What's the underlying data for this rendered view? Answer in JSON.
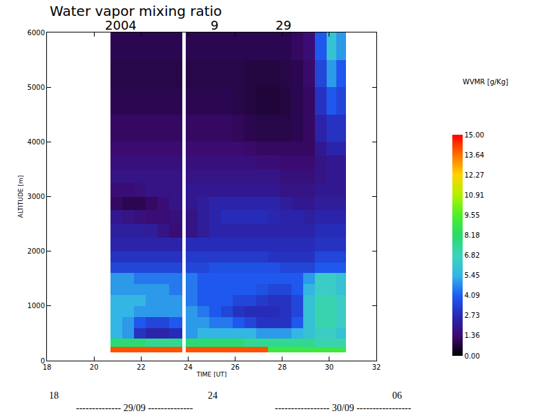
{
  "chart_data": {
    "type": "heatmap",
    "title": "Water vapor mixing ratio",
    "date_labels": [
      "2004",
      "9",
      "29"
    ],
    "x_label": "TIME [UT]",
    "y_label": "ALTITUDE [m]",
    "xlim": [
      18,
      32
    ],
    "xticks": [
      18,
      20,
      22,
      24,
      26,
      28,
      30,
      32
    ],
    "ylim": [
      0,
      6000
    ],
    "yticks": [
      0,
      1000,
      2000,
      3000,
      4000,
      5000,
      6000
    ],
    "grid": false,
    "x_edges": [
      20.7,
      21.2,
      21.7,
      22.2,
      22.7,
      23.2,
      23.75,
      23.9,
      24.4,
      24.9,
      25.4,
      25.9,
      26.4,
      26.9,
      27.4,
      27.9,
      28.4,
      28.9,
      29.4,
      29.9,
      30.3,
      30.7
    ],
    "y_edges": [
      150,
      250,
      400,
      600,
      800,
      1000,
      1200,
      1400,
      1600,
      1800,
      2000,
      2250,
      2500,
      2750,
      3000,
      3250,
      3500,
      3750,
      4000,
      4500,
      5000,
      5500,
      6000
    ],
    "z": [
      [
        14,
        14,
        14,
        14,
        14,
        14,
        null,
        14,
        14,
        14,
        14,
        14,
        14,
        14,
        9,
        9,
        9,
        9,
        9,
        9,
        9
      ],
      [
        8,
        8,
        8,
        7.5,
        7.5,
        7.5,
        null,
        8,
        8,
        8,
        8,
        8,
        7.5,
        7.5,
        7.5,
        7.5,
        7.5,
        7.5,
        7,
        7,
        7
      ],
      [
        5.5,
        5,
        3,
        2.5,
        2.5,
        2.8,
        null,
        5,
        5.5,
        5.5,
        5.5,
        5.5,
        5.5,
        5,
        5,
        5,
        5.5,
        6,
        6.5,
        6.5,
        6
      ],
      [
        5.5,
        5,
        4,
        3.5,
        3.5,
        4,
        null,
        5,
        5,
        4.5,
        4.5,
        4,
        3.5,
        3,
        3,
        3,
        4,
        6,
        7,
        7,
        6.5
      ],
      [
        5.5,
        5.5,
        5,
        5,
        5,
        5,
        null,
        5,
        4.5,
        4,
        3.5,
        3,
        2.8,
        2.8,
        2.8,
        3,
        3.5,
        6,
        7,
        7,
        6.5
      ],
      [
        5.5,
        5.5,
        5.5,
        5,
        5,
        5,
        null,
        4.5,
        4,
        4,
        4,
        3.5,
        3.5,
        3.2,
        3,
        3,
        3.5,
        6,
        7,
        7,
        6.5
      ],
      [
        5,
        5,
        5,
        5,
        5,
        4.5,
        null,
        4.5,
        4,
        4,
        4,
        4,
        4,
        3.8,
        3.5,
        3.5,
        4,
        5.5,
        6.5,
        6.5,
        6
      ],
      [
        5,
        5,
        4.5,
        4.5,
        4.5,
        4.5,
        null,
        4.5,
        4,
        4,
        4,
        4,
        4,
        4,
        4,
        4,
        4,
        5,
        6.5,
        6.5,
        6
      ],
      [
        3.5,
        3.5,
        3.5,
        3.5,
        3.5,
        3.5,
        null,
        3.5,
        3.5,
        3.8,
        3.8,
        3.8,
        3.8,
        3.8,
        3.8,
        3.5,
        3.5,
        3.5,
        4,
        4,
        4
      ],
      [
        3,
        3,
        3,
        3,
        3,
        3,
        null,
        3.2,
        3.2,
        3.2,
        3.2,
        3.2,
        3.2,
        3.2,
        3,
        3,
        3,
        3,
        3.5,
        3.5,
        3.5
      ],
      [
        2.5,
        2.5,
        2.5,
        2.5,
        2.5,
        2.5,
        null,
        2.8,
        2.8,
        2.8,
        2.8,
        2.8,
        2.8,
        2.8,
        2.8,
        2.8,
        2.8,
        2.8,
        3,
        3,
        3
      ],
      [
        2.3,
        2.3,
        2.3,
        2.2,
        1.8,
        1.5,
        null,
        1.8,
        2.2,
        2.5,
        2.5,
        2.5,
        2.5,
        2.5,
        2.5,
        2.5,
        2.5,
        2.5,
        2.8,
        2.8,
        2.8
      ],
      [
        2,
        1.8,
        1.6,
        1.5,
        1.5,
        1.6,
        null,
        1.8,
        2.2,
        2.5,
        2.8,
        2.8,
        2.8,
        2.8,
        2.6,
        2.5,
        2.5,
        2.3,
        2.5,
        2.5,
        2.5
      ],
      [
        1.2,
        1,
        1,
        1.2,
        1.5,
        1.8,
        null,
        2,
        2.2,
        2.5,
        2.5,
        2.5,
        2.5,
        2.5,
        2.5,
        2.2,
        2,
        2,
        2.2,
        2.2,
        2.2
      ],
      [
        1.5,
        1.5,
        1.6,
        1.8,
        1.8,
        1.8,
        null,
        2,
        2,
        2,
        2,
        2,
        2,
        2,
        2,
        1.8,
        1.8,
        1.8,
        2,
        2,
        2
      ],
      [
        1.8,
        1.8,
        1.8,
        1.8,
        1.8,
        1.8,
        null,
        1.8,
        1.8,
        1.8,
        1.8,
        1.8,
        1.8,
        1.8,
        1.8,
        1.6,
        1.6,
        1.6,
        1.8,
        2,
        2
      ],
      [
        1.6,
        1.6,
        1.6,
        1.6,
        1.6,
        1.6,
        null,
        1.6,
        1.6,
        1.6,
        1.6,
        1.6,
        1.6,
        1.5,
        1.5,
        1.4,
        1.4,
        1.4,
        1.8,
        2,
        2
      ],
      [
        1.4,
        1.4,
        1.4,
        1.4,
        1.4,
        1.4,
        null,
        1.4,
        1.4,
        1.4,
        1.4,
        1.4,
        1.3,
        1.2,
        1.2,
        1.2,
        1.2,
        1.2,
        2,
        2.5,
        2.5
      ],
      [
        1.2,
        1.2,
        1.2,
        1.2,
        1.2,
        1.2,
        null,
        1.2,
        1.2,
        1.2,
        1.2,
        1.1,
        1,
        0.9,
        0.9,
        0.9,
        1,
        1.2,
        2.5,
        3,
        3
      ],
      [
        1,
        1,
        1,
        1,
        1,
        1,
        null,
        1,
        1,
        1,
        1,
        0.9,
        0.8,
        0.7,
        0.7,
        0.8,
        1,
        1.2,
        3,
        4,
        3.5
      ],
      [
        0.9,
        0.9,
        0.9,
        0.9,
        0.9,
        0.9,
        null,
        0.9,
        0.9,
        0.9,
        0.9,
        0.9,
        0.8,
        0.8,
        0.8,
        0.9,
        1,
        1.3,
        3.5,
        5,
        4
      ],
      [
        1,
        1,
        1,
        1,
        1,
        1,
        null,
        1,
        1,
        1,
        1,
        1,
        1,
        1,
        1,
        1,
        1.2,
        1.5,
        4,
        6,
        5
      ]
    ],
    "colorbar": {
      "title": "WVMR [g/Kg]",
      "range": [
        0,
        15
      ],
      "ticks": [
        {
          "value": 0,
          "label": "0.00"
        },
        {
          "value": 1.36,
          "label": "1.36"
        },
        {
          "value": 2.73,
          "label": "2.73"
        },
        {
          "value": 4.09,
          "label": "4.09"
        },
        {
          "value": 5.45,
          "label": "5.45"
        },
        {
          "value": 6.82,
          "label": "6.82"
        },
        {
          "value": 8.18,
          "label": "8.18"
        },
        {
          "value": 9.55,
          "label": "9.55"
        },
        {
          "value": 10.91,
          "label": "10.91"
        },
        {
          "value": 12.27,
          "label": "12.27"
        },
        {
          "value": 13.64,
          "label": "13.64"
        },
        {
          "value": 15,
          "label": "15.00"
        }
      ]
    },
    "annotations": [
      "18",
      "24",
      "06",
      "-------------- 29/09 --------------",
      "----------------- 30/09 -----------------"
    ]
  }
}
